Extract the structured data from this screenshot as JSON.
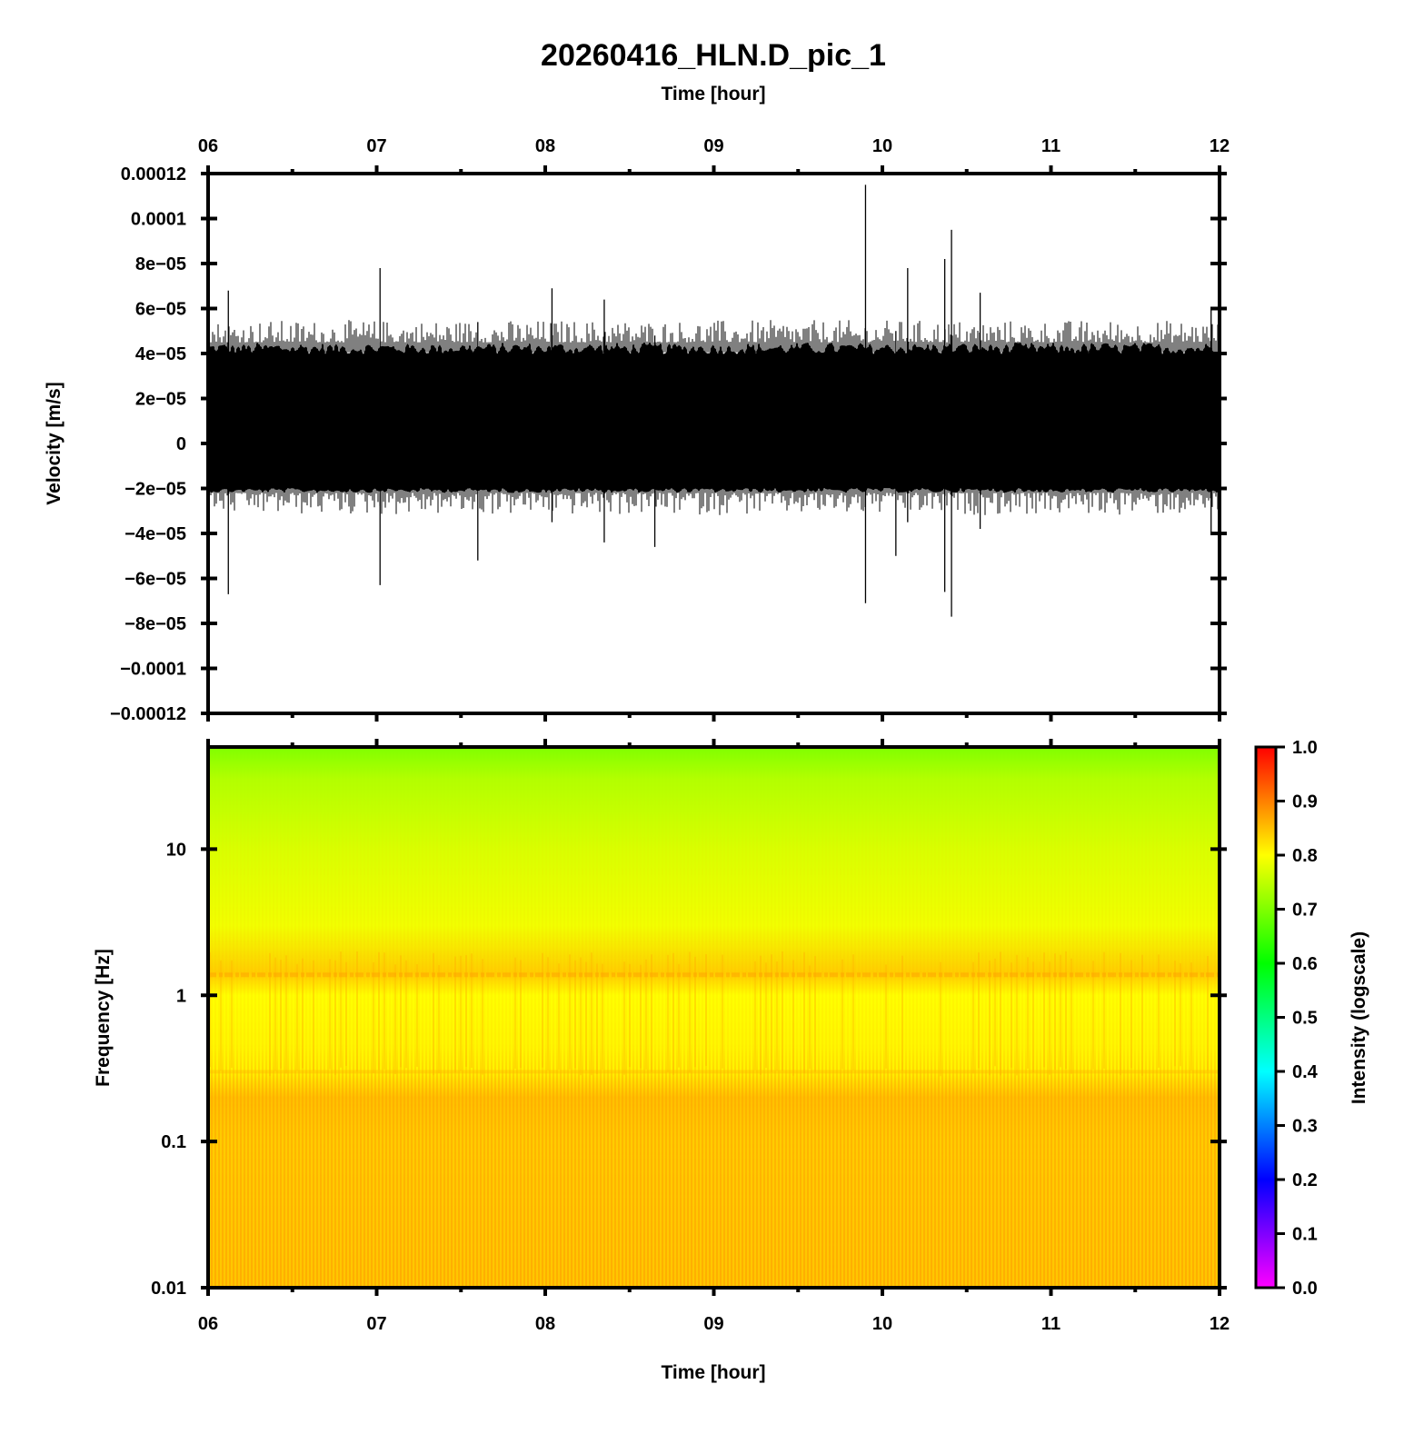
{
  "title": "20260416_HLN.D_pic_1",
  "top_axis_label": "Time [hour]",
  "colors": {
    "trace": "#000000",
    "frame": "#000000",
    "background": "#ffffff"
  },
  "chart_data": [
    {
      "type": "line",
      "panel": "waveform",
      "xlabel": "",
      "ylabel": "Velocity [m/s]",
      "x_tick_labels": [
        "06",
        "07",
        "08",
        "09",
        "10",
        "11",
        "12"
      ],
      "xlim": [
        6,
        12
      ],
      "ylim": [
        -0.00012,
        0.00012
      ],
      "y_tick_labels": [
        "0.00012",
        "0.0001",
        "8e−05",
        "6e−05",
        "4e−05",
        "2e−05",
        "0",
        "−2e−05",
        "−4e−05",
        "−6e−05",
        "−8e−05",
        "−0.0001",
        "−0.00012"
      ],
      "y_tick_values": [
        0.00012,
        0.0001,
        8e-05,
        6e-05,
        4e-05,
        2e-05,
        0,
        -2e-05,
        -4e-05,
        -6e-05,
        -8e-05,
        -0.0001,
        -0.00012
      ],
      "envelope": {
        "upper": 4.5e-05,
        "lower": -2.2e-05
      },
      "spikes": [
        {
          "x": 6.12,
          "max": 6.8e-05,
          "min": -6.7e-05
        },
        {
          "x": 7.02,
          "max": 7.8e-05,
          "min": -6.3e-05
        },
        {
          "x": 7.6,
          "max": 5.4e-05,
          "min": -5.2e-05
        },
        {
          "x": 8.04,
          "max": 6.9e-05,
          "min": -3.5e-05
        },
        {
          "x": 8.35,
          "max": 6.4e-05,
          "min": -4.4e-05
        },
        {
          "x": 8.65,
          "max": 4.8e-05,
          "min": -4.6e-05
        },
        {
          "x": 9.9,
          "max": 0.000115,
          "min": -7.1e-05
        },
        {
          "x": 10.08,
          "max": 5e-05,
          "min": -5e-05
        },
        {
          "x": 10.15,
          "max": 7.8e-05,
          "min": -3.5e-05
        },
        {
          "x": 10.37,
          "max": 8.2e-05,
          "min": -6.6e-05
        },
        {
          "x": 10.41,
          "max": 9.5e-05,
          "min": -7.7e-05
        },
        {
          "x": 10.58,
          "max": 6.7e-05,
          "min": -3.8e-05
        },
        {
          "x": 11.95,
          "max": 6e-05,
          "min": -4e-05
        }
      ],
      "grid": false
    },
    {
      "type": "heatmap",
      "panel": "spectrogram",
      "xlabel": "Time [hour]",
      "ylabel": "Frequency [Hz]",
      "x_tick_labels": [
        "06",
        "07",
        "08",
        "09",
        "10",
        "11",
        "12"
      ],
      "xlim": [
        6,
        12
      ],
      "y_scale": "log",
      "ylim": [
        0.01,
        50
      ],
      "y_tick_labels": [
        "0.01",
        "0.1",
        "1",
        "10"
      ],
      "y_tick_values": [
        0.01,
        0.1,
        1,
        10
      ],
      "intensity_profile": [
        {
          "freq": 0.01,
          "intensity": 0.845
        },
        {
          "freq": 0.1,
          "intensity": 0.84
        },
        {
          "freq": 0.2,
          "intensity": 0.85
        },
        {
          "freq": 0.3,
          "intensity": 0.81
        },
        {
          "freq": 1,
          "intensity": 0.8
        },
        {
          "freq": 1.4,
          "intensity": 0.84
        },
        {
          "freq": 3,
          "intensity": 0.79
        },
        {
          "freq": 10,
          "intensity": 0.77
        },
        {
          "freq": 30,
          "intensity": 0.74
        },
        {
          "freq": 50,
          "intensity": 0.7
        }
      ],
      "colorbar": {
        "label": "Intensity (logscale)",
        "range": [
          0,
          1
        ],
        "tick_labels": [
          "0.0",
          "0.1",
          "0.2",
          "0.3",
          "0.4",
          "0.5",
          "0.6",
          "0.7",
          "0.8",
          "0.9",
          "1.0"
        ],
        "colors": [
          "#ff00ff",
          "#8000ff",
          "#0000ff",
          "#0080ff",
          "#00ffff",
          "#00ff80",
          "#00ff00",
          "#80ff00",
          "#ffff00",
          "#ff8000",
          "#ff0000"
        ]
      },
      "grid": false
    }
  ]
}
